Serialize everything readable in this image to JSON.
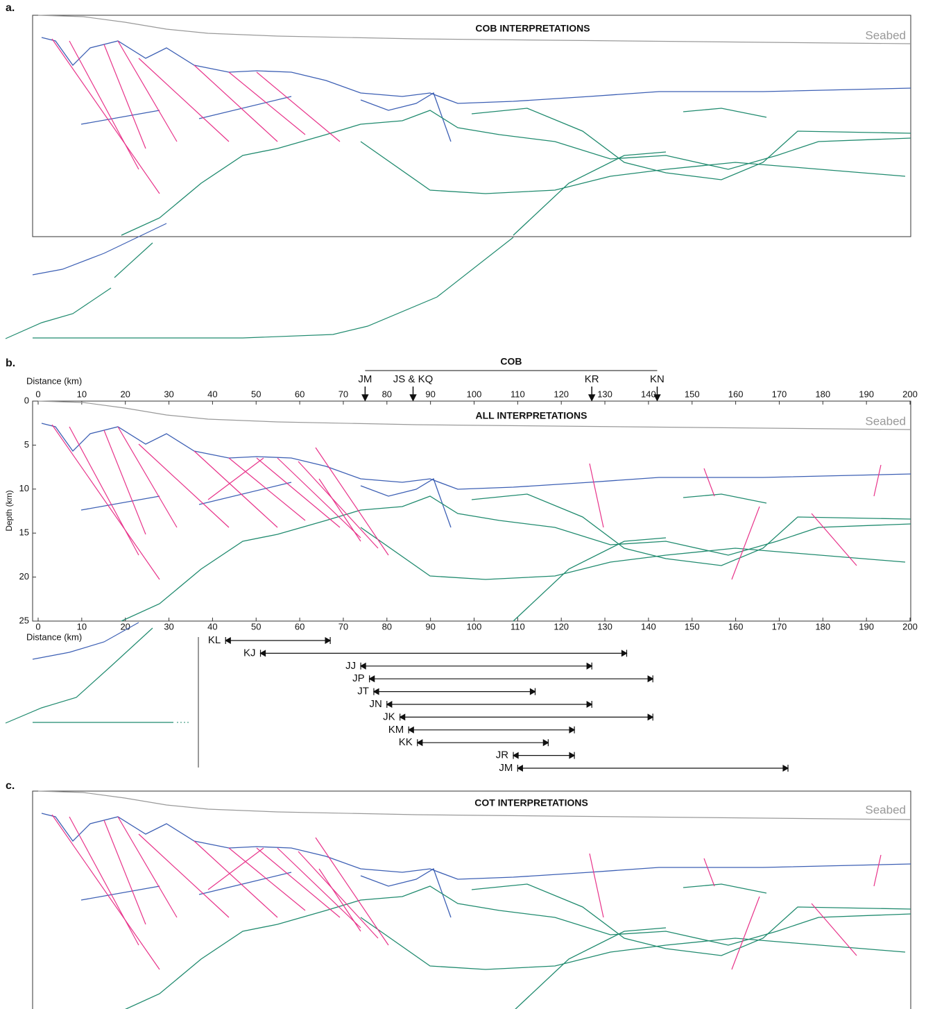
{
  "panels": [
    {
      "label": "a.",
      "title": "COB INTERPRETATIONS",
      "seabed": "Seabed"
    },
    {
      "label": "b.",
      "title": "ALL INTERPRETATIONS",
      "seabed": "Seabed"
    },
    {
      "label": "c.",
      "title": "COT INTERPRETATIONS",
      "seabed": "Seabed"
    }
  ],
  "chart_data": {
    "type": "range",
    "xlabel": "Distance (km)",
    "ylabel": "Depth (km)",
    "xlim": [
      0,
      200
    ],
    "xticks": [
      0,
      10,
      20,
      30,
      40,
      50,
      60,
      70,
      80,
      90,
      100,
      110,
      120,
      130,
      140,
      150,
      160,
      170,
      180,
      190,
      200
    ],
    "ylim": [
      25,
      0
    ],
    "yticks": [
      0,
      5,
      10,
      15,
      20,
      25
    ],
    "zone": {
      "label": "COB",
      "markers": [
        {
          "label": "JM",
          "value": 75
        },
        {
          "label": "JS & KQ",
          "value": 86
        },
        {
          "label": "KR",
          "value": 127
        },
        {
          "label": "KN",
          "value": 142
        }
      ]
    },
    "ranges": [
      {
        "name": "KL",
        "start": 43,
        "end": 67
      },
      {
        "name": "KJ",
        "start": 51,
        "end": 135
      },
      {
        "name": "JJ",
        "start": 74,
        "end": 127
      },
      {
        "name": "JP",
        "start": 76,
        "end": 141
      },
      {
        "name": "JT",
        "start": 77,
        "end": 114
      },
      {
        "name": "JN",
        "start": 80,
        "end": 127
      },
      {
        "name": "JK",
        "start": 83,
        "end": 141
      },
      {
        "name": "KM",
        "start": 85,
        "end": 123
      },
      {
        "name": "KK",
        "start": 87,
        "end": 117
      },
      {
        "name": "JR",
        "start": 109,
        "end": 123
      },
      {
        "name": "JM",
        "start": 110,
        "end": 172
      }
    ]
  }
}
